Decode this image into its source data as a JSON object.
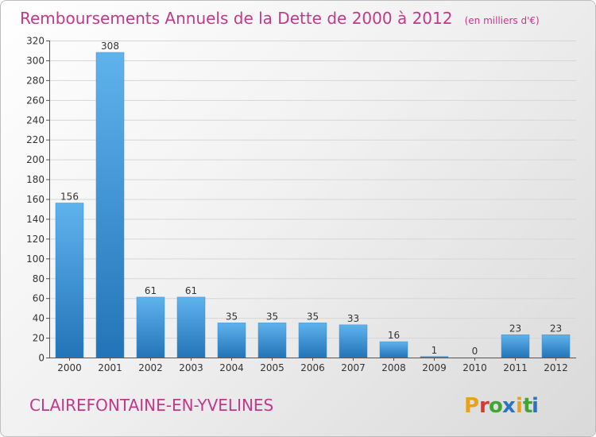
{
  "header": {
    "title": "Remboursements Annuels de la Dette de 2000 à 2012",
    "unit": "(en milliers d'€)"
  },
  "footer": {
    "commune": "CLAIREFONTAINE-EN-YVELINES",
    "brand_letters": [
      "P",
      "r",
      "o",
      "x",
      "i",
      "t",
      "i"
    ],
    "brand_colors": [
      "#e8a21a",
      "#d93a2b",
      "#3fa535",
      "#2a74c4",
      "#e8a21a",
      "#3fa535",
      "#2a74c4"
    ]
  },
  "colors": {
    "bar_top": "#5fb3ec",
    "bar_bottom": "#2274b8",
    "accent": "#c0398a"
  },
  "chart_data": {
    "type": "bar",
    "title": "Remboursements Annuels de la Dette de 2000 à 2012",
    "subtitle": "(en milliers d'€)",
    "xlabel": "",
    "ylabel": "",
    "categories": [
      "2000",
      "2001",
      "2002",
      "2003",
      "2004",
      "2005",
      "2006",
      "2007",
      "2008",
      "2009",
      "2010",
      "2011",
      "2012"
    ],
    "values": [
      156,
      308,
      61,
      61,
      35,
      35,
      35,
      33,
      16,
      1,
      0,
      23,
      23
    ],
    "ylim": [
      0,
      320
    ],
    "yticks": [
      0,
      20,
      40,
      60,
      80,
      100,
      120,
      140,
      160,
      180,
      200,
      220,
      240,
      260,
      280,
      300,
      320
    ],
    "grid": true,
    "legend": "none"
  }
}
